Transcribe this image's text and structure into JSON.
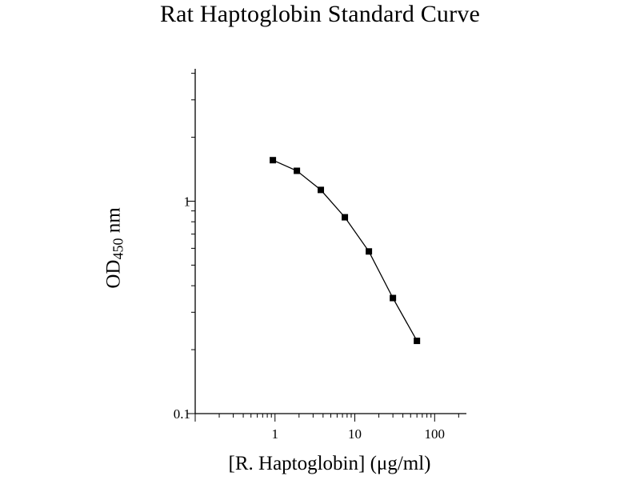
{
  "chart_data": {
    "type": "line",
    "title": "Rat Haptoglobin Standard Curve",
    "xlabel": {
      "prefix": "[R. Haptoglobin] (",
      "mu": "μ",
      "suffix": "g/ml)"
    },
    "ylabel": {
      "main": "OD",
      "subscript": "450",
      "unit": " nm"
    },
    "xscale": "log",
    "yscale": "log",
    "xlim": [
      0.1,
      250
    ],
    "ylim": [
      0.1,
      4.2
    ],
    "xticks": [
      {
        "value": 1,
        "label": "1"
      },
      {
        "value": 10,
        "label": "10"
      },
      {
        "value": 100,
        "label": "100"
      }
    ],
    "yticks": [
      {
        "value": 0.1,
        "label": "0.1"
      },
      {
        "value": 1,
        "label": "1"
      }
    ],
    "series": [
      {
        "marker": "square",
        "color": "#000000",
        "points": [
          {
            "x": 0.94,
            "y": 1.56
          },
          {
            "x": 1.88,
            "y": 1.39
          },
          {
            "x": 3.75,
            "y": 1.13
          },
          {
            "x": 7.5,
            "y": 0.84
          },
          {
            "x": 15,
            "y": 0.58
          },
          {
            "x": 30,
            "y": 0.35
          },
          {
            "x": 60,
            "y": 0.22
          }
        ]
      }
    ],
    "grid": false
  }
}
